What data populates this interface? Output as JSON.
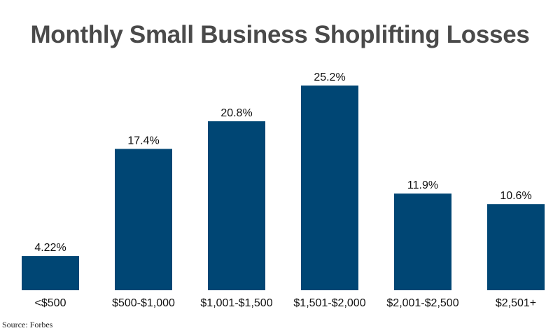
{
  "chart_data": {
    "type": "bar",
    "title": "Monthly Small Business Shoplifting Losses",
    "xlabel": "",
    "ylabel": "",
    "categories": [
      "<$500",
      "$500-$1,000",
      "$1,001-$1,500",
      "$1,501-$2,000",
      "$2,001-$2,500",
      "$2,501+"
    ],
    "values": [
      4.22,
      17.4,
      20.8,
      25.2,
      11.9,
      10.6
    ],
    "data_labels": [
      "4.22%",
      "17.4%",
      "20.8%",
      "25.2%",
      "11.9%",
      "10.6%"
    ],
    "ylim": [
      0,
      25.2
    ],
    "grid": false,
    "legend": "none",
    "bar_color": "#004674",
    "source": "Source: Forbes"
  }
}
